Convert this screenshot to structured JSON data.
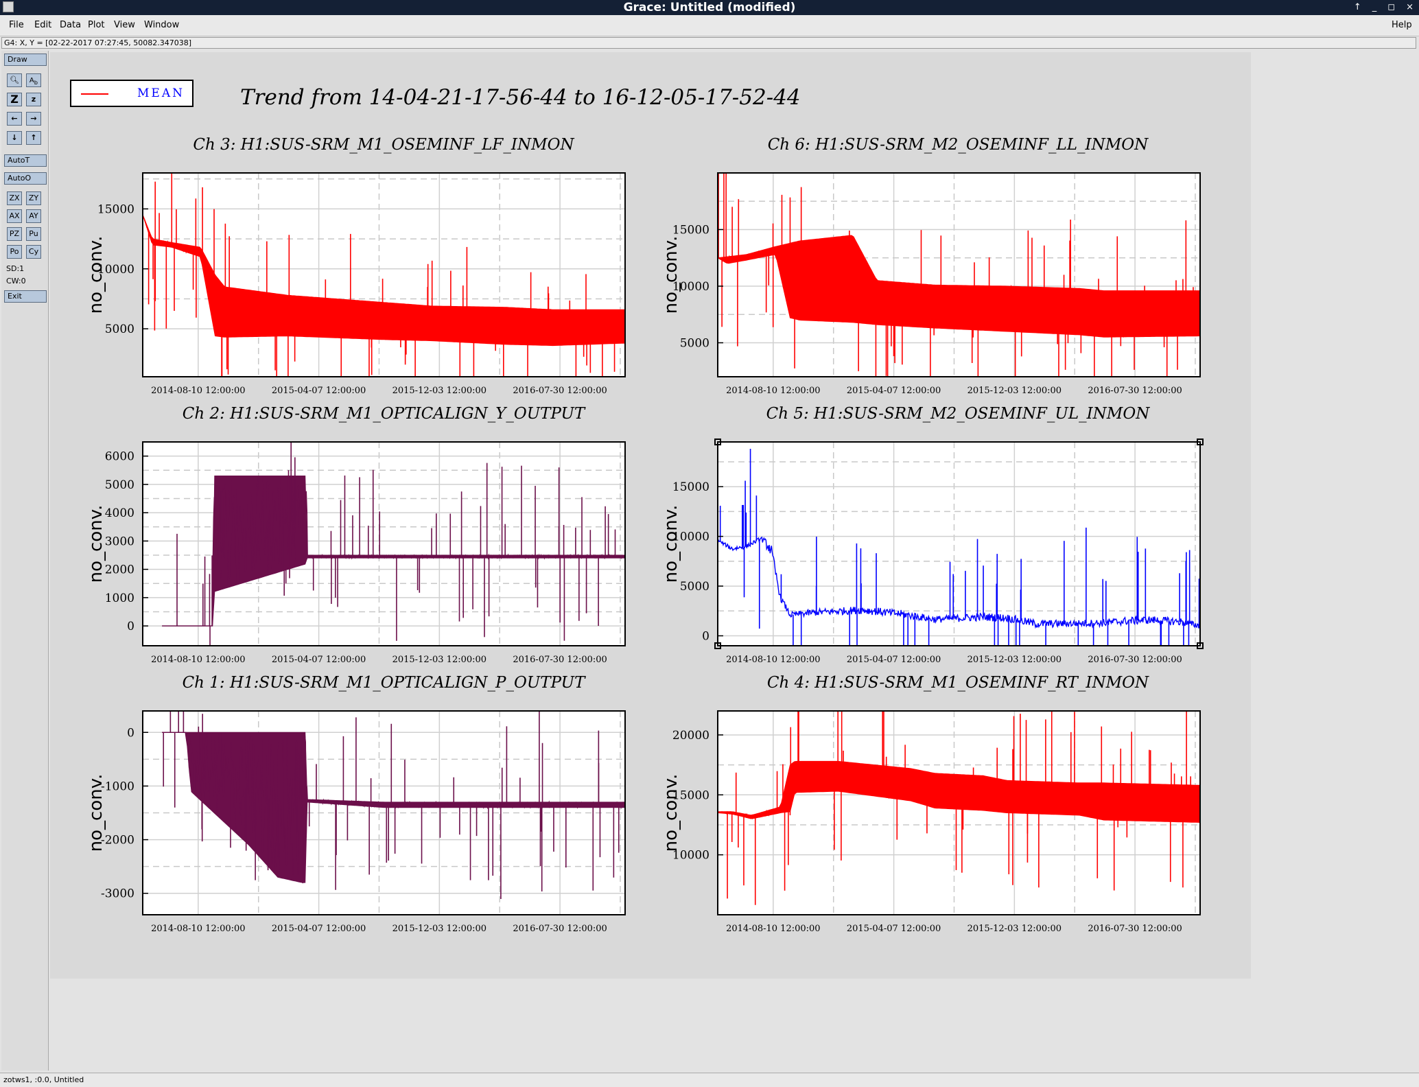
{
  "window": {
    "title": "Grace: Untitled (modified)",
    "controls": [
      "↑",
      "_",
      "◻",
      "×"
    ]
  },
  "menubar": {
    "items": [
      "File",
      "Edit",
      "Data",
      "Plot",
      "View",
      "Window"
    ],
    "help": "Help"
  },
  "locator": "G4: X, Y = [02-22-2017 07:27:45, 50082.347038]",
  "toolbar": {
    "draw": "Draw",
    "autot": "AutoT",
    "autoo": "AutoO",
    "zx": "ZX",
    "zy": "ZY",
    "ax": "AX",
    "ay": "AY",
    "pz": "PZ",
    "pu": "Pu",
    "po": "Po",
    "cy": "Cy",
    "sd": "SD:1",
    "cw": "CW:0",
    "exit": "Exit",
    "icons": [
      "magnifier-icon",
      "text-icon",
      "zoom-large-icon",
      "zoom-small-icon",
      "arrow-left-icon",
      "arrow-right-icon",
      "arrow-down-icon",
      "arrow-up-icon"
    ]
  },
  "legend": {
    "label": "MEAN",
    "color": "#ff0000"
  },
  "main_title": "Trend from 14-04-21-17-56-44 to 16-12-05-17-52-44",
  "statusbar": "zotws1, :0.0, Untitled",
  "chart_data": [
    {
      "type": "line",
      "title": "Ch 3: H1:SUS-SRM_M1_OSEMINF_LF_INMON",
      "ylabel": "no_conv.",
      "color": "#ff0000",
      "fill_band": true,
      "x_ticks": [
        "2014-08-10 12:00:00",
        "2015-04-07 12:00:00",
        "2015-12-03 12:00:00",
        "2016-07-30 12:00:00"
      ],
      "y_ticks": [
        5000,
        10000,
        15000
      ],
      "ylim": [
        1000,
        18000
      ],
      "band": {
        "x": [
          0,
          0.02,
          0.06,
          0.12,
          0.15,
          0.17,
          0.3,
          0.5,
          0.6,
          0.75,
          0.85,
          1.0
        ],
        "lo": [
          14500,
          12000,
          11800,
          11000,
          4400,
          4300,
          4400,
          4100,
          4000,
          3700,
          3600,
          3800
        ],
        "hi": [
          14500,
          12500,
          12200,
          11800,
          9500,
          8500,
          7800,
          7200,
          6900,
          6800,
          6600,
          6600
        ]
      }
    },
    {
      "type": "line",
      "title": "Ch 6: H1:SUS-SRM_M2_OSEMINF_LL_INMON",
      "ylabel": "no_conv.",
      "color": "#ff0000",
      "fill_band": true,
      "x_ticks": [
        "2014-08-10 12:00:00",
        "2015-04-07 12:00:00",
        "2015-12-03 12:00:00",
        "2016-07-30 12:00:00"
      ],
      "y_ticks": [
        5000,
        10000,
        15000
      ],
      "ylim": [
        2000,
        20000
      ],
      "band": {
        "x": [
          0,
          0.02,
          0.06,
          0.12,
          0.15,
          0.17,
          0.28,
          0.33,
          0.45,
          0.6,
          0.75,
          0.8,
          1.0
        ],
        "lo": [
          12500,
          12000,
          12300,
          12800,
          7200,
          7000,
          6800,
          6600,
          6300,
          6000,
          5700,
          5500,
          5600
        ],
        "hi": [
          12500,
          12600,
          12800,
          13500,
          13800,
          14000,
          14500,
          10500,
          10100,
          10000,
          9800,
          9600,
          9600
        ]
      }
    },
    {
      "type": "line",
      "title": "Ch 2: H1:SUS-SRM_M1_OPTICALIGN_Y_OUTPUT",
      "ylabel": "no_conv.",
      "color": "#6b0f4a",
      "fill_band": true,
      "x_ticks": [
        "2014-08-10 12:00:00",
        "2015-04-07 12:00:00",
        "2015-12-03 12:00:00",
        "2016-07-30 12:00:00"
      ],
      "y_ticks": [
        0,
        1000,
        2000,
        3000,
        4000,
        5000,
        6000
      ],
      "ylim": [
        -700,
        6500
      ],
      "band": {
        "x": [
          0.04,
          0.12,
          0.145,
          0.146,
          0.34,
          0.341,
          1.0
        ],
        "lo": [
          0,
          0,
          0,
          1200,
          2200,
          2400,
          2400
        ],
        "hi": [
          0,
          0,
          0,
          5300,
          5300,
          2500,
          2500
        ]
      }
    },
    {
      "type": "line",
      "title": "Ch 5: H1:SUS-SRM_M2_OSEMINF_UL_INMON",
      "ylabel": "no_conv.",
      "color": "#0000ff",
      "fill_band": false,
      "x_ticks": [
        "2014-08-10 12:00:00",
        "2015-04-07 12:00:00",
        "2015-12-03 12:00:00",
        "2016-07-30 12:00:00"
      ],
      "y_ticks": [
        0,
        5000,
        10000,
        15000
      ],
      "ylim": [
        -1000,
        19500
      ],
      "band": {
        "x": [
          0,
          0.03,
          0.06,
          0.09,
          0.11,
          0.13,
          0.15,
          0.2,
          0.3,
          0.38,
          0.45,
          0.55,
          0.6,
          0.66,
          0.75,
          0.8,
          0.85,
          0.9,
          0.96,
          1.0
        ],
        "lo": [
          9500,
          8500,
          8800,
          9600,
          8000,
          3500,
          1800,
          2000,
          2200,
          1800,
          1300,
          1500,
          1400,
          800,
          900,
          900,
          1100,
          1200,
          1000,
          700
        ],
        "hi": [
          9700,
          9000,
          9200,
          10000,
          9500,
          4200,
          2400,
          2700,
          3000,
          2600,
          2000,
          2300,
          2200,
          1600,
          1600,
          1700,
          1900,
          2000,
          1800,
          1300
        ]
      }
    },
    {
      "type": "line",
      "title": "Ch 1: H1:SUS-SRM_M1_OPTICALIGN_P_OUTPUT",
      "ylabel": "no_conv.",
      "color": "#6b0f4a",
      "fill_band": true,
      "x_ticks": [
        "2014-08-10 12:00:00",
        "2015-04-07 12:00:00",
        "2015-12-03 12:00:00",
        "2016-07-30 12:00:00"
      ],
      "y_ticks": [
        -3000,
        -2000,
        -1000,
        0
      ],
      "ylim": [
        -3400,
        400
      ],
      "band": {
        "x": [
          0.04,
          0.09,
          0.1,
          0.16,
          0.22,
          0.28,
          0.33,
          0.34,
          0.341,
          0.5,
          0.7,
          1.0
        ],
        "lo": [
          0,
          0,
          -1100,
          -1600,
          -2100,
          -2700,
          -2800,
          -2800,
          -1300,
          -1400,
          -1400,
          -1400
        ],
        "hi": [
          0,
          0,
          0,
          0,
          0,
          0,
          0,
          0,
          -1250,
          -1300,
          -1300,
          -1300
        ]
      }
    },
    {
      "type": "line",
      "title": "Ch 4: H1:SUS-SRM_M1_OSEMINF_RT_INMON",
      "ylabel": "no_conv.",
      "color": "#ff0000",
      "fill_band": true,
      "x_ticks": [
        "2014-08-10 12:00:00",
        "2015-04-07 12:00:00",
        "2015-12-03 12:00:00",
        "2016-07-30 12:00:00"
      ],
      "y_ticks": [
        10000,
        15000,
        20000
      ],
      "ylim": [
        5000,
        22000
      ],
      "band": {
        "x": [
          0,
          0.03,
          0.07,
          0.13,
          0.15,
          0.16,
          0.25,
          0.4,
          0.45,
          0.55,
          0.6,
          0.75,
          0.8,
          1.0
        ],
        "lo": [
          13500,
          13400,
          13000,
          13500,
          13600,
          15200,
          15300,
          14500,
          13900,
          13700,
          13500,
          13300,
          12900,
          12700
        ],
        "hi": [
          13600,
          13600,
          13300,
          14000,
          17500,
          17800,
          17800,
          17200,
          16800,
          16600,
          16200,
          16000,
          16000,
          15800
        ]
      }
    }
  ]
}
